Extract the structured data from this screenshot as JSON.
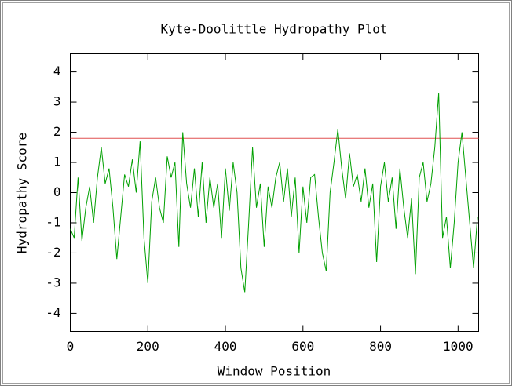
{
  "chart_data": {
    "type": "line",
    "title": "Kyte-Doolittle Hydropathy Plot",
    "x_label": "Window Position",
    "y_label": "Hydropathy Score",
    "x": [
      0,
      10,
      20,
      30,
      40,
      50,
      60,
      70,
      80,
      90,
      100,
      110,
      120,
      130,
      140,
      150,
      160,
      170,
      180,
      190,
      200,
      210,
      220,
      230,
      240,
      250,
      260,
      270,
      280,
      290,
      300,
      310,
      320,
      330,
      340,
      350,
      360,
      370,
      380,
      390,
      400,
      410,
      420,
      430,
      440,
      450,
      460,
      470,
      480,
      490,
      500,
      510,
      520,
      530,
      540,
      550,
      560,
      570,
      580,
      590,
      600,
      610,
      620,
      630,
      640,
      650,
      660,
      670,
      680,
      690,
      700,
      710,
      720,
      730,
      740,
      750,
      760,
      770,
      780,
      790,
      800,
      810,
      820,
      830,
      840,
      850,
      860,
      870,
      880,
      890,
      900,
      910,
      920,
      930,
      940,
      950,
      960,
      970,
      980,
      990,
      1000,
      1010,
      1020,
      1030,
      1040,
      1050
    ],
    "series": [
      {
        "color": "#00a000",
        "values": [
          -1.2,
          -1.5,
          0.5,
          -1.6,
          -0.5,
          0.2,
          -1.0,
          0.5,
          1.5,
          0.3,
          0.8,
          -0.5,
          -2.2,
          -0.8,
          0.6,
          0.2,
          1.1,
          0.0,
          1.7,
          -1.5,
          -3.0,
          -0.3,
          0.5,
          -0.5,
          -1.0,
          1.2,
          0.5,
          1.0,
          -1.8,
          2.0,
          0.3,
          -0.5,
          0.8,
          -0.8,
          1.0,
          -1.0,
          0.5,
          -0.5,
          0.3,
          -1.5,
          0.8,
          -0.6,
          1.0,
          0.0,
          -2.5,
          -3.3,
          -1.0,
          1.5,
          -0.5,
          0.3,
          -1.8,
          0.2,
          -0.5,
          0.5,
          1.0,
          -0.3,
          0.8,
          -0.8,
          0.5,
          -2.0,
          0.2,
          -1.0,
          0.5,
          0.6,
          -0.8,
          -2.0,
          -2.6,
          0.0,
          1.0,
          2.1,
          0.8,
          -0.2,
          1.3,
          0.2,
          0.6,
          -0.3,
          0.8,
          -0.5,
          0.3,
          -2.3,
          0.2,
          1.0,
          -0.3,
          0.5,
          -1.2,
          0.8,
          -0.5,
          -1.5,
          -0.2,
          -2.7,
          0.5,
          1.0,
          -0.3,
          0.3,
          1.5,
          3.3,
          -1.5,
          -0.8,
          -2.5,
          -1.0,
          1.0,
          2.0,
          0.5,
          -1.0,
          -2.5,
          -0.8
        ]
      }
    ],
    "reference_line": {
      "value": 1.8,
      "color": "#e05050"
    },
    "xlim": [
      0,
      1053
    ],
    "ylim": [
      -4.6,
      4.6
    ],
    "xticks": [
      0,
      200,
      400,
      600,
      800,
      1000
    ],
    "yticks": [
      -4,
      -3,
      -2,
      -1,
      0,
      1,
      2,
      3,
      4
    ],
    "grid": false
  }
}
